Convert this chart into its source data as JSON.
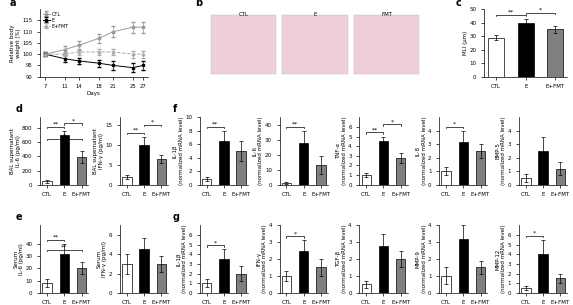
{
  "panel_a": {
    "days": [
      7,
      11,
      14,
      18,
      21,
      25,
      27
    ],
    "CTL": [
      100,
      102,
      104,
      107,
      110,
      112,
      112
    ],
    "E": [
      100,
      98,
      97,
      96,
      95,
      94,
      95
    ],
    "EpFMT": [
      100,
      100,
      101,
      101,
      101,
      100,
      100
    ],
    "CTL_err": [
      1,
      1.5,
      2,
      2,
      2.5,
      2.5,
      2.5
    ],
    "E_err": [
      1,
      1.5,
      1.5,
      1.5,
      2,
      2,
      2
    ],
    "EpFMT_err": [
      1,
      1,
      1.5,
      1.5,
      1.5,
      1.5,
      1.5
    ],
    "ylabel": "Relative body\nweight (%)",
    "xlabel": "Days",
    "ylim": [
      90,
      120
    ],
    "yticks": [
      90,
      95,
      100,
      105,
      110,
      115
    ]
  },
  "panel_c": {
    "categories": [
      "CTL",
      "E",
      "E+FMT"
    ],
    "means": [
      29,
      40,
      35
    ],
    "errors": [
      2,
      2.5,
      2.5
    ],
    "colors": [
      "white",
      "black",
      "gray"
    ],
    "ylabel": "MLI (μm)",
    "ylim": [
      0,
      50
    ],
    "yticks": [
      0,
      10,
      20,
      30,
      40,
      50
    ],
    "sig_pairs": [
      [
        "CTL",
        "E",
        "**"
      ],
      [
        "E",
        "E+FMT",
        "*"
      ]
    ]
  },
  "panel_d1": {
    "categories": [
      "CTL",
      "E",
      "E+FMT"
    ],
    "means": [
      50,
      700,
      390
    ],
    "errors": [
      20,
      60,
      80
    ],
    "colors": [
      "white",
      "black",
      "gray"
    ],
    "ylabel": "BAL supernatant\nIL-6 (pg/ml)",
    "ylim": [
      0,
      950
    ],
    "yticks": [
      0,
      200,
      400,
      600,
      800
    ],
    "sig_pairs": [
      [
        "CTL",
        "E",
        "**"
      ],
      [
        "CTL",
        "E+FMT",
        "*"
      ],
      [
        "E",
        "E+FMT",
        "*"
      ]
    ]
  },
  "panel_d2": {
    "categories": [
      "CTL",
      "E",
      "E+FMT"
    ],
    "means": [
      2,
      10,
      6.5
    ],
    "errors": [
      0.5,
      2,
      1
    ],
    "colors": [
      "white",
      "black",
      "gray"
    ],
    "ylabel": "BAL supernatant\nIFN-γ (pg/ml)",
    "ylim": [
      0,
      17
    ],
    "yticks": [
      0,
      5,
      10,
      15
    ],
    "sig_pairs": [
      [
        "CTL",
        "E",
        "**"
      ],
      [
        "E",
        "E+FMT",
        "*"
      ]
    ]
  },
  "panel_e1": {
    "categories": [
      "CTL",
      "E",
      "E+FMT"
    ],
    "means": [
      8,
      32,
      20
    ],
    "errors": [
      3,
      8,
      5
    ],
    "colors": [
      "white",
      "black",
      "gray"
    ],
    "ylabel": "Serum\nIL-6 (pg/ml)",
    "ylim": [
      0,
      55
    ],
    "yticks": [
      0,
      10,
      20,
      30,
      40
    ],
    "sig_pairs": [
      [
        "CTL",
        "E",
        "**"
      ],
      [
        "CTL",
        "E+FMT",
        "**"
      ]
    ]
  },
  "panel_e2": {
    "categories": [
      "CTL",
      "E",
      "E+FMT"
    ],
    "means": [
      3,
      4.5,
      3
    ],
    "errors": [
      1,
      1.2,
      0.8
    ],
    "colors": [
      "white",
      "black",
      "gray"
    ],
    "ylabel": "Serum\nIFN-γ (pg/ml)",
    "ylim": [
      0,
      7
    ],
    "yticks": [
      0,
      2,
      4,
      6
    ],
    "sig_pairs": []
  },
  "panel_f": {
    "subpanels": [
      {
        "name": "IL-1β",
        "means": [
          0.8,
          6.5,
          5.0
        ],
        "errors": [
          0.3,
          1.5,
          1.5
        ],
        "ylim": [
          0,
          10
        ],
        "yticks": [
          0,
          2,
          4,
          6,
          8,
          10
        ],
        "sig_pairs": [
          [
            "CTL",
            "E",
            "**"
          ]
        ]
      },
      {
        "name": "IL-6",
        "means": [
          1,
          28,
          13
        ],
        "errors": [
          0.5,
          8,
          6
        ],
        "ylim": [
          0,
          45
        ],
        "yticks": [
          0,
          10,
          20,
          30,
          40
        ],
        "sig_pairs": [
          [
            "CTL",
            "E",
            "**"
          ]
        ]
      },
      {
        "name": "TNF-α",
        "means": [
          1,
          4.5,
          2.8
        ],
        "errors": [
          0.2,
          0.5,
          0.5
        ],
        "ylim": [
          0,
          7
        ],
        "yticks": [
          0,
          1,
          2,
          3,
          4,
          5,
          6
        ],
        "sig_pairs": [
          [
            "CTL",
            "E",
            "**"
          ],
          [
            "E",
            "E+FMT",
            "*"
          ]
        ]
      },
      {
        "name": "IL-8",
        "means": [
          1,
          3.2,
          2.5
        ],
        "errors": [
          0.3,
          0.8,
          0.5
        ],
        "ylim": [
          0,
          5
        ],
        "yticks": [
          0,
          1,
          2,
          3,
          4
        ],
        "sig_pairs": [
          [
            "CTL",
            "E",
            "*"
          ]
        ]
      },
      {
        "name": "BMP-5",
        "means": [
          0.5,
          2.5,
          1.2
        ],
        "errors": [
          0.3,
          1.0,
          0.5
        ],
        "ylim": [
          0,
          5
        ],
        "yticks": [
          0,
          1,
          2,
          3,
          4
        ],
        "sig_pairs": []
      }
    ]
  },
  "panel_g": {
    "subpanels": [
      {
        "name": "IL-1β",
        "means": [
          1,
          3.5,
          2.0
        ],
        "errors": [
          0.4,
          1.0,
          0.8
        ],
        "ylim": [
          0,
          7
        ],
        "yticks": [
          0,
          1,
          2,
          3,
          4,
          5,
          6
        ],
        "sig_pairs": [
          [
            "CTL",
            "E",
            "*"
          ]
        ]
      },
      {
        "name": "IFN-γ",
        "means": [
          1,
          2.5,
          1.5
        ],
        "errors": [
          0.3,
          0.6,
          0.5
        ],
        "ylim": [
          0,
          4
        ],
        "yticks": [
          0,
          1,
          2,
          3,
          4
        ],
        "sig_pairs": [
          [
            "CTL",
            "E",
            "*"
          ]
        ]
      },
      {
        "name": "TGF-β",
        "means": [
          0.5,
          2.8,
          2.0
        ],
        "errors": [
          0.2,
          0.7,
          0.5
        ],
        "ylim": [
          0,
          4
        ],
        "yticks": [
          0,
          1,
          2,
          3,
          4
        ],
        "sig_pairs": []
      },
      {
        "name": "MMP-9",
        "means": [
          1,
          3.2,
          1.5
        ],
        "errors": [
          0.5,
          0.8,
          0.4
        ],
        "ylim": [
          0,
          4
        ],
        "yticks": [
          0,
          1,
          2,
          3,
          4
        ],
        "sig_pairs": []
      },
      {
        "name": "MMP-12",
        "means": [
          0.5,
          4.0,
          1.5
        ],
        "errors": [
          0.2,
          1.5,
          0.5
        ],
        "ylim": [
          0,
          7
        ],
        "yticks": [
          0,
          1,
          2,
          3,
          4,
          5,
          6
        ],
        "sig_pairs": [
          [
            "CTL",
            "E",
            "*"
          ]
        ]
      }
    ]
  },
  "colors": {
    "CTL": "white",
    "E": "black",
    "E+FMT": "gray"
  },
  "bar_edgecolor": "black",
  "bar_width": 0.55,
  "categories": [
    "CTL",
    "E",
    "E+FMT"
  ],
  "line_colors": {
    "CTL": "#888888",
    "E": "#000000",
    "E+FMT": "#aaaaaa"
  }
}
